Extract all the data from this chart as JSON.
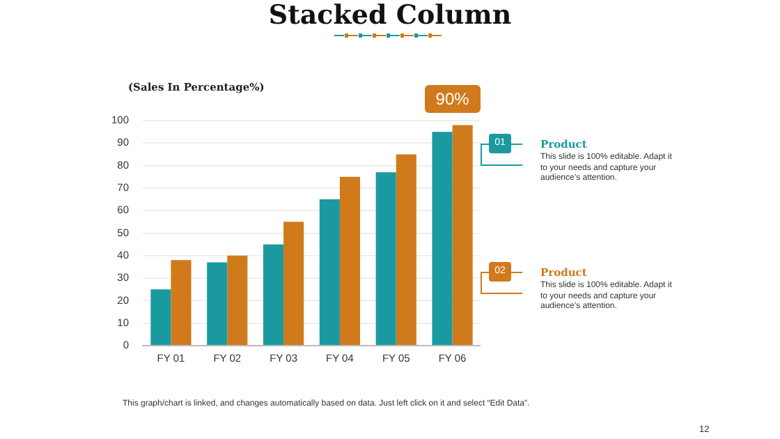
{
  "chart_data": {
    "type": "bar",
    "title": "Stacked Column",
    "ylabel": "(Sales In Percentage%)",
    "categories": [
      "FY 01",
      "FY 02",
      "FY 03",
      "FY 04",
      "FY 05",
      "FY 06"
    ],
    "series": [
      {
        "name": "Product",
        "color": "#1a9aa0",
        "values": [
          25,
          37,
          45,
          65,
          77,
          95
        ]
      },
      {
        "name": "Product",
        "color": "#d07a1c",
        "values": [
          38,
          40,
          55,
          75,
          85,
          98
        ]
      }
    ],
    "ylim": [
      0,
      100
    ],
    "yticks": [
      0,
      10,
      20,
      30,
      40,
      50,
      60,
      70,
      80,
      90,
      100
    ],
    "grid": "y",
    "legend": "right",
    "annotations": [
      {
        "text": "90%",
        "x": "FY 06",
        "y": 98
      },
      "01",
      "This slide is 100% editable. Adapt it to your needs and capture your audience’s attention.",
      "02",
      "This slide is 100% editable. Adapt it to your needs and capture your audience’s attention.",
      "This graph/chart is linked, and changes automatically based on data. Just left click on it and select “Edit Data”.",
      "12"
    ]
  }
}
